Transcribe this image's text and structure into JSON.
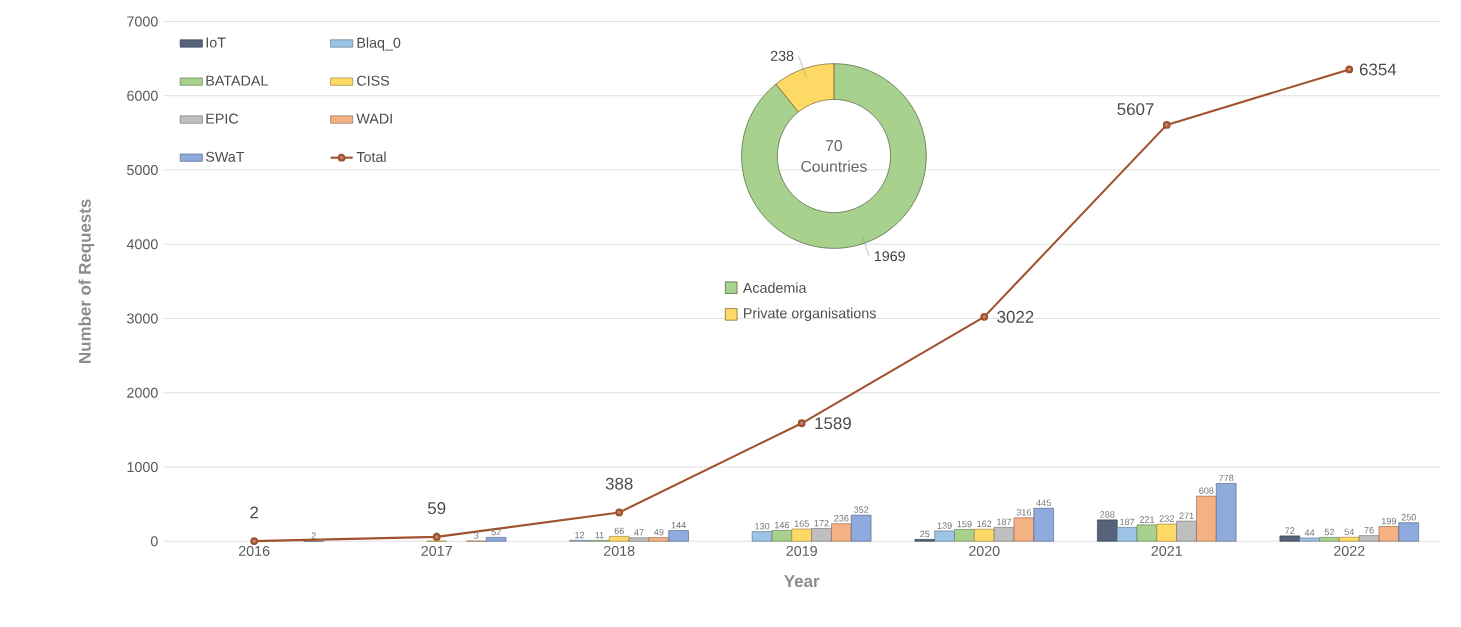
{
  "chart_data": [
    {
      "type": "bar",
      "xlabel": "Year",
      "ylabel": "Number of Requests",
      "categories": [
        "2016",
        "2017",
        "2018",
        "2019",
        "2020",
        "2021",
        "2022"
      ],
      "series": [
        {
          "name": "IoT",
          "color": "#56637a",
          "values": [
            null,
            null,
            null,
            null,
            25,
            288,
            72
          ]
        },
        {
          "name": "Blaq_0",
          "color": "#9dc3e6",
          "values": [
            null,
            null,
            12,
            130,
            139,
            187,
            44
          ]
        },
        {
          "name": "BATADAL",
          "color": "#a9d18e",
          "values": [
            null,
            null,
            11,
            146,
            159,
            221,
            52
          ]
        },
        {
          "name": "CISS",
          "color": "#ffd966",
          "values": [
            null,
            2,
            66,
            165,
            162,
            232,
            54
          ]
        },
        {
          "name": "EPIC",
          "color": "#bfbfbf",
          "values": [
            null,
            null,
            47,
            172,
            187,
            271,
            76
          ]
        },
        {
          "name": "WADI",
          "color": "#f4b183",
          "values": [
            null,
            3,
            49,
            236,
            316,
            608,
            199
          ]
        },
        {
          "name": "SWaT",
          "color": "#8faadc",
          "values": [
            2,
            52,
            144,
            352,
            445,
            778,
            250
          ]
        },
        {
          "name": "Total",
          "type": "line",
          "color": "#a0522d",
          "marker": "circle",
          "values": [
            2,
            59,
            388,
            1589,
            3022,
            5607,
            6354
          ]
        }
      ],
      "ylim": [
        0,
        7000
      ],
      "yticks": [
        0,
        1000,
        2000,
        3000,
        4000,
        5000,
        6000,
        7000
      ],
      "grid": "y",
      "legend": "top left",
      "data_labels": true
    },
    {
      "type": "donut",
      "categories": [
        "Academia",
        "Private organisations"
      ],
      "values": [
        1969,
        238
      ],
      "colors": [
        "#a9d18e",
        "#ffd966"
      ],
      "annotations": [
        "70 Countries"
      ],
      "legend": "bottom",
      "data_labels": true
    }
  ]
}
